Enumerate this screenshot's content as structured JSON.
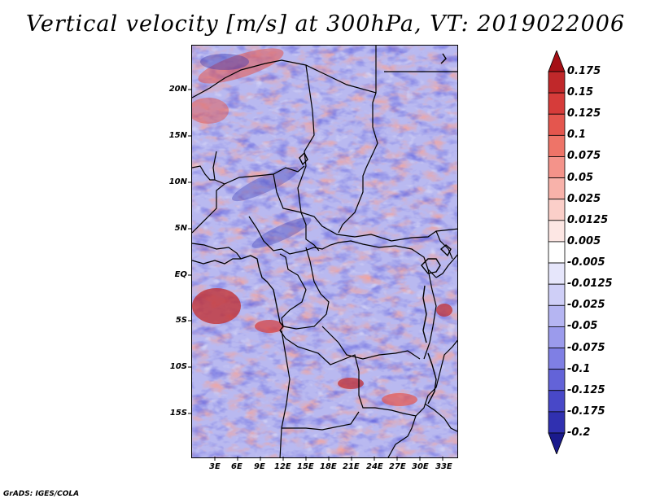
{
  "title": "Vertical velocity [m/s] at 300hPa, VT: 2019022006",
  "credit": "GrADS: IGES/COLA",
  "lat_ticks": [
    "20N",
    "15N",
    "10N",
    "5N",
    "EQ",
    "5S",
    "10S",
    "15S"
  ],
  "lon_ticks": [
    "3E",
    "6E",
    "9E",
    "12E",
    "15E",
    "18E",
    "21E",
    "24E",
    "27E",
    "30E",
    "33E"
  ],
  "colorbar": {
    "labels": [
      "0.175",
      "0.15",
      "0.125",
      "0.1",
      "0.075",
      "0.05",
      "0.025",
      "0.0125",
      "0.005",
      "-0.005",
      "-0.0125",
      "-0.025",
      "-0.05",
      "-0.075",
      "-0.1",
      "-0.125",
      "-0.175",
      "-0.2"
    ],
    "colors": [
      "#a50f15",
      "#c0282a",
      "#d63c3a",
      "#e4564e",
      "#ee7468",
      "#f4938a",
      "#f8b2aa",
      "#fbcfc9",
      "#fde7e4",
      "#ffffff",
      "#e6e6fb",
      "#cfcff7",
      "#b5b5f2",
      "#9b9bec",
      "#7f7fe4",
      "#6363d8",
      "#4848c8",
      "#3030b0",
      "#1a1a8c"
    ]
  }
}
